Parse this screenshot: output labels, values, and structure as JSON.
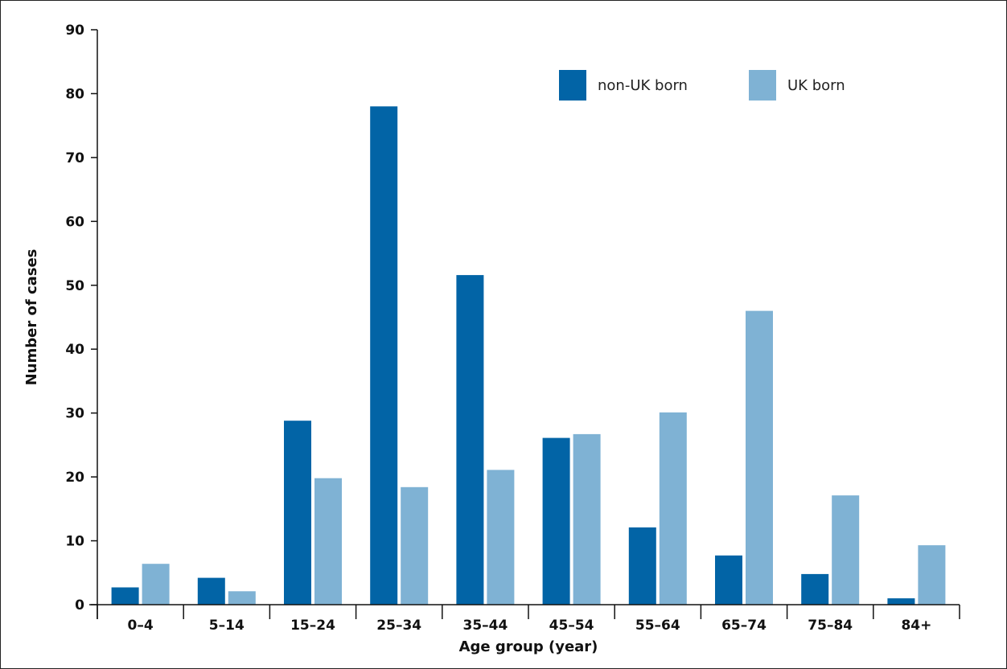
{
  "colors": {
    "non_uk": "#0264a6",
    "uk": "#7fb2d4",
    "axis": "#111111"
  },
  "chart_data": {
    "type": "bar",
    "title": "",
    "xlabel": "Age group (year)",
    "ylabel": "Number of cases",
    "ylim": [
      0,
      90
    ],
    "yticks": [
      0,
      10,
      20,
      30,
      40,
      50,
      60,
      70,
      80,
      90
    ],
    "grid": false,
    "legend_position": "top-right",
    "categories": [
      "0–4",
      "5–14",
      "15–24",
      "25–34",
      "35–44",
      "45–54",
      "55–64",
      "65–74",
      "75–84",
      "84+"
    ],
    "series": [
      {
        "name": "non-UK born",
        "color": "#0264a6",
        "values": [
          2.7,
          4.2,
          28.8,
          78,
          51.6,
          26.1,
          12.1,
          7.7,
          4.8,
          1
        ]
      },
      {
        "name": "UK born",
        "color": "#7fb2d4",
        "values": [
          6.4,
          2.1,
          19.8,
          18.4,
          21.1,
          26.7,
          30.1,
          46,
          17.1,
          9.3
        ]
      }
    ]
  }
}
